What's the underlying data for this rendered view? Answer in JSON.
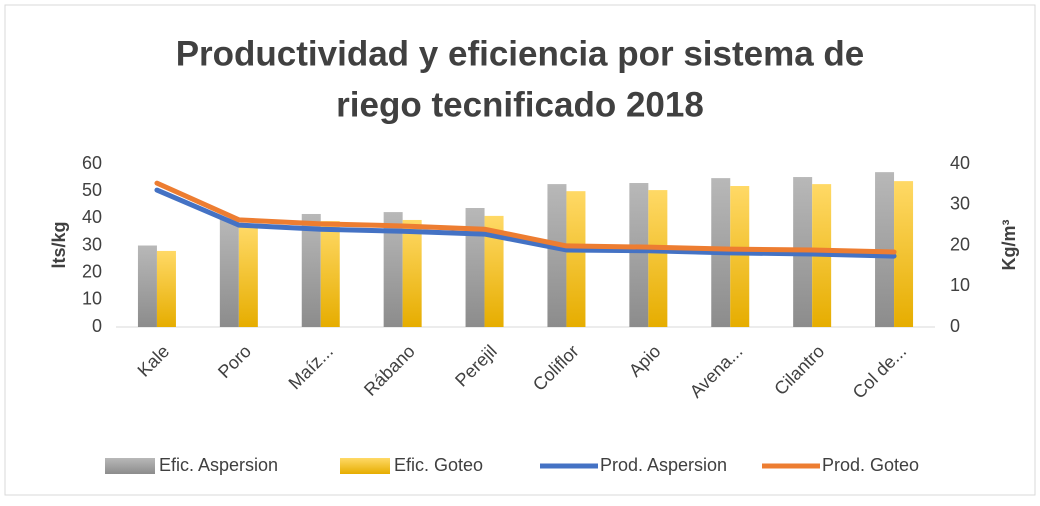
{
  "chart_data": {
    "type": "bar_line",
    "title": "Productividad y eficiencia por sistema de riego tecnificado 2018",
    "title_lines": [
      "Productividad y eficiencia por sistema de",
      "riego tecnificado 2018"
    ],
    "y_label": "lts/kg",
    "y2_label": "Kg/m³",
    "categories": [
      "Kale",
      "Poro",
      "Maíz...",
      "Rábano",
      "Perejil",
      "Coliflor",
      "Apio",
      "Avena...",
      "Cilantro",
      "Col de..."
    ],
    "series": [
      {
        "name": "Efic. Aspersion",
        "kind": "bar",
        "color": "#a5a5a5",
        "values": [
          30,
          40,
          41.6,
          42.3,
          43.8,
          52.6,
          53,
          54.8,
          55.2,
          57
        ]
      },
      {
        "name": "Efic. Goteo",
        "kind": "bar",
        "color": "#ffc000",
        "values": [
          28,
          37,
          39,
          39.4,
          40.9,
          50,
          50.4,
          51.9,
          52.6,
          53.7
        ]
      },
      {
        "name": "Prod. Aspersion",
        "kind": "line",
        "axis": "y2",
        "color": "#4472c4",
        "values": [
          33.6,
          25,
          24,
          23.5,
          22.8,
          18.9,
          18.7,
          18.2,
          17.9,
          17.4
        ]
      },
      {
        "name": "Prod. Goteo",
        "kind": "line",
        "axis": "y2",
        "color": "#ed7d31",
        "values": [
          35.3,
          26.3,
          25.3,
          24.8,
          24,
          19.9,
          19.6,
          19.1,
          18.9,
          18.4
        ]
      }
    ],
    "ylim": [
      0,
      60
    ],
    "yticks": [
      0,
      10,
      20,
      30,
      40,
      50,
      60
    ],
    "y2lim": [
      0,
      40
    ],
    "y2ticks": [
      0,
      10,
      20,
      30,
      40
    ],
    "legend": "bottom"
  }
}
